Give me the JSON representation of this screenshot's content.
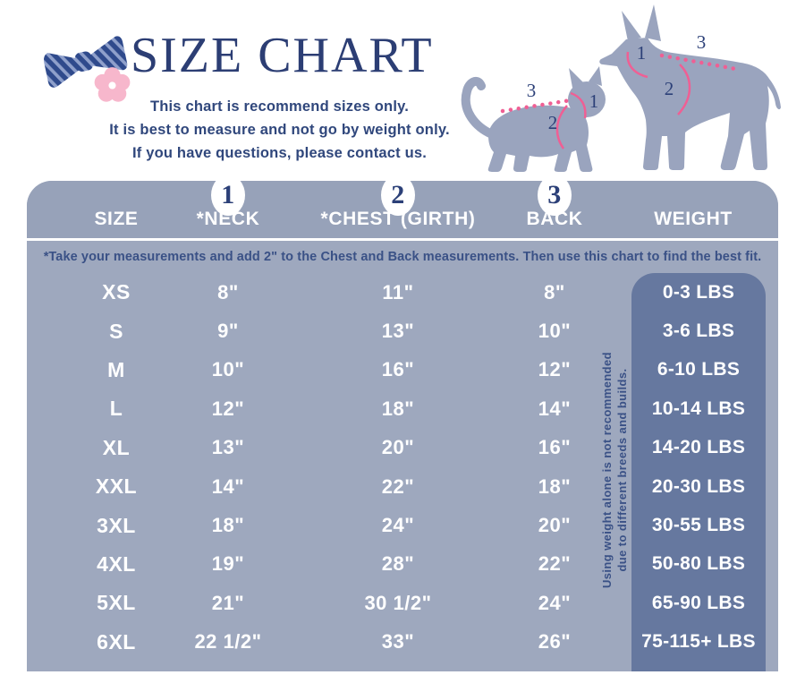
{
  "header": {
    "title": "SIZE CHART",
    "subtitle_lines": [
      "This chart is recommend sizes only.",
      "It is best to measure and not go by weight only.",
      "If you have questions, please contact us."
    ]
  },
  "diagram": {
    "cat_labels": {
      "neck": "1",
      "chest": "2",
      "back": "3"
    },
    "dog_labels": {
      "neck": "1",
      "chest": "2",
      "back": "3"
    }
  },
  "table": {
    "columns": [
      "SIZE",
      "*NECK",
      "*CHEST (GIRTH)",
      "BACK",
      "WEIGHT"
    ],
    "column_numbers": [
      "1",
      "2",
      "3"
    ],
    "note": "*Take your measurements and add 2\" to the Chest and Back measurements. Then use this chart to find the best fit.",
    "side_note": [
      "Using weight alone is not recommended",
      "due to different breeds and builds."
    ],
    "rows": [
      [
        "XS",
        "8\"",
        "11\"",
        "8\"",
        "0-3 LBS"
      ],
      [
        "S",
        "9\"",
        "13\"",
        "10\"",
        "3-6 LBS"
      ],
      [
        "M",
        "10\"",
        "16\"",
        "12\"",
        "6-10 LBS"
      ],
      [
        "L",
        "12\"",
        "18\"",
        "14\"",
        "10-14 LBS"
      ],
      [
        "XL",
        "13\"",
        "20\"",
        "16\"",
        "14-20 LBS"
      ],
      [
        "XXL",
        "14\"",
        "22\"",
        "18\"",
        "20-30 LBS"
      ],
      [
        "3XL",
        "18\"",
        "24\"",
        "20\"",
        "30-55 LBS"
      ],
      [
        "4XL",
        "19\"",
        "28\"",
        "22\"",
        "50-80 LBS"
      ],
      [
        "5XL",
        "21\"",
        "30 1/2\"",
        "24\"",
        "65-90 LBS"
      ],
      [
        "6XL",
        "22 1/2\"",
        "33\"",
        "26\"",
        "75-115+ LBS"
      ]
    ]
  },
  "chart_data": {
    "type": "table",
    "title": "SIZE CHART",
    "columns": [
      "SIZE",
      "NECK (inches)",
      "CHEST GIRTH (inches)",
      "BACK (inches)",
      "WEIGHT (lbs)"
    ],
    "rows": [
      [
        "XS",
        "8",
        "11",
        "8",
        "0-3"
      ],
      [
        "S",
        "9",
        "13",
        "10",
        "3-6"
      ],
      [
        "M",
        "10",
        "16",
        "12",
        "6-10"
      ],
      [
        "L",
        "12",
        "18",
        "14",
        "10-14"
      ],
      [
        "XL",
        "13",
        "20",
        "16",
        "14-20"
      ],
      [
        "XXL",
        "14",
        "22",
        "18",
        "20-30"
      ],
      [
        "3XL",
        "18",
        "24",
        "20",
        "30-55"
      ],
      [
        "4XL",
        "19",
        "28",
        "22",
        "50-80"
      ],
      [
        "5XL",
        "21",
        "30 1/2",
        "24",
        "65-90"
      ],
      [
        "6XL",
        "22 1/2",
        "33",
        "26",
        "75-115+"
      ]
    ],
    "footnote": "Measurements include 2 inches added to chest and back; weight alone is not recommended due to different breeds and builds."
  },
  "colors": {
    "navy_text": "#2c3e74",
    "table_body_bg": "#9ea8be",
    "table_header_bg": "#97a2b9",
    "weight_panel_bg": "#66789f",
    "pink_annotation": "#ef5f94",
    "flower_pink": "#f7b7cc",
    "silhouette_gray": "#9aa4be",
    "white": "#ffffff"
  }
}
